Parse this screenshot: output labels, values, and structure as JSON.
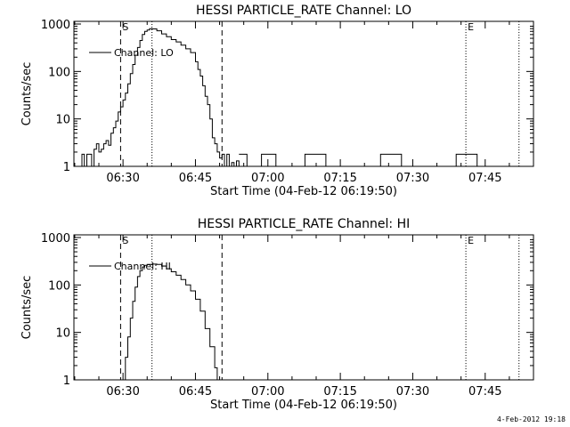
{
  "footer_timestamp": "4-Feb-2012 19:18",
  "chart_data": [
    {
      "type": "line",
      "title": "HESSI PARTICLE_RATE Channel: LO",
      "xlabel": "Start Time (04-Feb-12 06:19:50)",
      "ylabel": "Counts/sec",
      "y_scale": "log",
      "ylim": [
        1,
        1000
      ],
      "xlim": [
        "06:19:50",
        "07:55:00"
      ],
      "x_tick_labels": [
        "06:30",
        "06:45",
        "07:00",
        "07:15",
        "07:30",
        "07:45"
      ],
      "y_tick_labels": [
        "1",
        "10",
        "100",
        "1000"
      ],
      "legend": {
        "position": "top-left",
        "entries": [
          "Channel: LO"
        ]
      },
      "markers": [
        {
          "label": "S",
          "time": "06:29:30",
          "style": "dashed"
        },
        {
          "label": "",
          "time": "06:36:00",
          "style": "dotted"
        },
        {
          "label": "",
          "time": "06:50:30",
          "style": "dashed"
        },
        {
          "label": "E",
          "time": "07:41:00",
          "style": "dotted"
        },
        {
          "label": "",
          "time": "07:52:00",
          "style": "dotted"
        }
      ],
      "series": [
        {
          "name": "Channel: LO",
          "x": [
            "06:20:30",
            "06:21:00",
            "06:21:30",
            "06:22:00",
            "06:22:30",
            "06:23:00",
            "06:23:30",
            "06:24:00",
            "06:24:30",
            "06:25:00",
            "06:25:30",
            "06:26:00",
            "06:26:30",
            "06:27:00",
            "06:27:30",
            "06:28:00",
            "06:28:30",
            "06:29:00",
            "06:29:30",
            "06:30:00",
            "06:30:30",
            "06:31:00",
            "06:31:30",
            "06:32:00",
            "06:32:30",
            "06:33:00",
            "06:33:30",
            "06:34:00",
            "06:34:30",
            "06:35:00",
            "06:35:30",
            "06:36:00",
            "06:37:00",
            "06:38:00",
            "06:39:00",
            "06:40:00",
            "06:41:00",
            "06:42:00",
            "06:43:00",
            "06:44:00",
            "06:45:00",
            "06:45:30",
            "06:46:00",
            "06:46:30",
            "06:47:00",
            "06:47:30",
            "06:48:00",
            "06:48:30",
            "06:49:00",
            "06:49:30",
            "06:50:00",
            "06:50:30",
            "06:51:00",
            "06:51:30",
            "06:52:00",
            "06:52:30",
            "06:53:00",
            "06:53:30",
            "06:54:00"
          ],
          "y": [
            1,
            1,
            1.8,
            1,
            1.8,
            1.8,
            1,
            2.3,
            3,
            2,
            2.3,
            3,
            3.5,
            2.8,
            5,
            6.5,
            9,
            14,
            18,
            25,
            35,
            55,
            90,
            140,
            220,
            320,
            450,
            600,
            700,
            750,
            800,
            790,
            720,
            620,
            540,
            470,
            420,
            360,
            300,
            250,
            160,
            110,
            80,
            50,
            30,
            20,
            10,
            4,
            3,
            2,
            1.5,
            1.8,
            1,
            1.8,
            1,
            1.2,
            1,
            1.3,
            1
          ]
        }
      ]
    },
    {
      "type": "line",
      "title": "HESSI PARTICLE_RATE Channel: HI",
      "xlabel": "Start Time (04-Feb-12 06:19:50)",
      "ylabel": "Counts/sec",
      "y_scale": "log",
      "ylim": [
        1,
        1000
      ],
      "xlim": [
        "06:19:50",
        "07:55:00"
      ],
      "x_tick_labels": [
        "06:30",
        "06:45",
        "07:00",
        "07:15",
        "07:30",
        "07:45"
      ],
      "y_tick_labels": [
        "1",
        "10",
        "100",
        "1000"
      ],
      "legend": {
        "position": "top-left",
        "entries": [
          "Channel: HI"
        ]
      },
      "markers": [
        {
          "label": "S",
          "time": "06:29:30",
          "style": "dashed"
        },
        {
          "label": "",
          "time": "06:36:00",
          "style": "dotted"
        },
        {
          "label": "",
          "time": "06:50:30",
          "style": "dashed"
        },
        {
          "label": "E",
          "time": "07:41:00",
          "style": "dotted"
        },
        {
          "label": "",
          "time": "07:52:00",
          "style": "dotted"
        }
      ],
      "series": [
        {
          "name": "Channel: HI",
          "x": [
            "06:30:00",
            "06:30:30",
            "06:31:00",
            "06:31:30",
            "06:32:00",
            "06:32:30",
            "06:33:00",
            "06:33:30",
            "06:34:00",
            "06:34:30",
            "06:35:00",
            "06:36:00",
            "06:37:00",
            "06:38:00",
            "06:39:00",
            "06:40:00",
            "06:41:00",
            "06:42:00",
            "06:43:00",
            "06:44:00",
            "06:45:00",
            "06:46:00",
            "06:47:00",
            "06:48:00",
            "06:49:00",
            "06:49:30"
          ],
          "y": [
            1,
            3,
            8,
            20,
            45,
            90,
            150,
            200,
            240,
            260,
            270,
            275,
            270,
            250,
            220,
            190,
            160,
            130,
            100,
            75,
            50,
            28,
            12,
            5,
            1.8,
            1
          ]
        }
      ]
    }
  ]
}
